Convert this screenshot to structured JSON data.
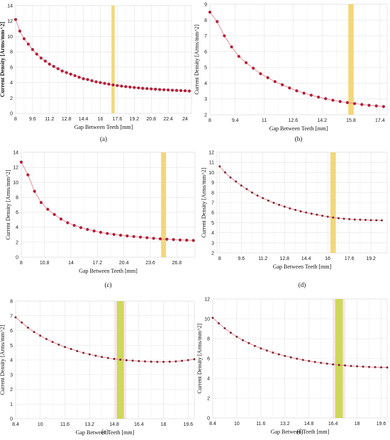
{
  "colors": {
    "line": "#e8868f",
    "marker": "#b0203a",
    "marker_dark": "#7a2a3a",
    "band_gold": "#f2d36b",
    "band_green": "#c9d64a",
    "band_pink": "#f3c6cf",
    "grid": "#e3e3e3"
  },
  "chart_data": [
    {
      "panel": "a",
      "caption": "(a)",
      "type": "line",
      "xlabel": "Gap Between Teeth [mm]",
      "ylabel": "Current Density [Arms/mm^2]",
      "xlim": [
        8,
        24.6
      ],
      "ylim": [
        0,
        14
      ],
      "xticks": [
        "8",
        "9.6",
        "11.2",
        "12.8",
        "14.4",
        "16",
        "17.6",
        "19.2",
        "20.8",
        "22.4",
        "24"
      ],
      "xtick_values": [
        8,
        9.6,
        11.2,
        12.8,
        14.4,
        16,
        17.6,
        19.2,
        20.8,
        22.4,
        24
      ],
      "yticks": [
        "0",
        "2",
        "4",
        "6",
        "8",
        "10",
        "12",
        "14"
      ],
      "ytick_values": [
        0,
        2,
        4,
        6,
        8,
        10,
        12,
        14
      ],
      "highlight": {
        "x": 17.2,
        "width": 0.3,
        "color": "gold"
      },
      "x": [
        8,
        8.4,
        8.8,
        9.2,
        9.6,
        10,
        10.4,
        10.8,
        11.2,
        11.6,
        12,
        12.4,
        12.8,
        13.2,
        13.6,
        14,
        14.4,
        14.8,
        15.2,
        15.6,
        16,
        16.4,
        16.8,
        17.2,
        17.6,
        18,
        18.4,
        18.8,
        19.2,
        19.6,
        20,
        20.4,
        20.8,
        21.2,
        21.6,
        22,
        22.4,
        22.8,
        23.2,
        23.6,
        24,
        24.4
      ],
      "y": [
        12.2,
        10.7,
        9.7,
        9.0,
        8.3,
        7.7,
        7.2,
        6.8,
        6.4,
        6.1,
        5.8,
        5.5,
        5.3,
        5.1,
        4.9,
        4.7,
        4.5,
        4.4,
        4.25,
        4.1,
        4.0,
        3.9,
        3.8,
        3.7,
        3.62,
        3.55,
        3.48,
        3.42,
        3.36,
        3.31,
        3.26,
        3.22,
        3.18,
        3.14,
        3.1,
        3.07,
        3.04,
        3.01,
        2.98,
        2.96,
        2.94,
        2.9
      ],
      "bold_ylabel": true
    },
    {
      "panel": "b",
      "caption": "(b)",
      "type": "line",
      "xlabel": "Gap Between Teeth [mm]",
      "ylabel": "Current Density [Arms/mm^2]",
      "xlim": [
        8,
        17.8
      ],
      "ylim": [
        2,
        9
      ],
      "xticks": [
        "8",
        "9.4",
        "11",
        "12.6",
        "14.2",
        "15.8",
        "17.4"
      ],
      "xtick_values": [
        8,
        9.4,
        11,
        12.6,
        14.2,
        15.8,
        17.4
      ],
      "yticks": [
        "2",
        "3",
        "4",
        "5",
        "6",
        "7",
        "8",
        "9"
      ],
      "ytick_values": [
        2,
        3,
        4,
        5,
        6,
        7,
        8,
        9
      ],
      "highlight": {
        "x": 15.8,
        "width": 0.3,
        "color": "gold"
      },
      "x": [
        8,
        8.4,
        8.8,
        9.2,
        9.6,
        10,
        10.4,
        10.8,
        11.2,
        11.6,
        12,
        12.4,
        12.8,
        13.2,
        13.6,
        14,
        14.4,
        14.8,
        15.2,
        15.6,
        16,
        16.4,
        16.8,
        17.2,
        17.6
      ],
      "y": [
        8.5,
        7.9,
        7.0,
        6.3,
        5.7,
        5.3,
        4.95,
        4.6,
        4.35,
        4.1,
        3.9,
        3.7,
        3.52,
        3.37,
        3.24,
        3.12,
        3.02,
        2.92,
        2.84,
        2.77,
        2.71,
        2.65,
        2.6,
        2.56,
        2.52
      ],
      "bold_ylabel": false
    },
    {
      "panel": "c",
      "caption": "(c)",
      "type": "line",
      "xlabel": "Gap Between Teeth [mm]",
      "ylabel": "Current Density [Arms/mm^2]",
      "xlim": [
        8,
        29
      ],
      "ylim": [
        0,
        14
      ],
      "xticks": [
        "8",
        "10.8",
        "14",
        "17.2",
        "20.4",
        "23.6",
        "26.8"
      ],
      "xtick_values": [
        8,
        10.8,
        14,
        17.2,
        20.4,
        23.6,
        26.8
      ],
      "yticks": [
        "0",
        "2",
        "4",
        "6",
        "8",
        "10",
        "12",
        "14"
      ],
      "ytick_values": [
        0,
        2,
        4,
        6,
        8,
        10,
        12,
        14
      ],
      "highlight": {
        "x": 25.2,
        "width": 0.6,
        "color": "gold"
      },
      "x": [
        8,
        8.8,
        9.6,
        10.4,
        11.2,
        12,
        12.8,
        13.6,
        14.4,
        15.2,
        16,
        16.8,
        17.6,
        18.4,
        19.2,
        20,
        20.8,
        21.6,
        22.4,
        23.2,
        24,
        24.8,
        25.6,
        26.4,
        27.2,
        28,
        28.8
      ],
      "y": [
        12.7,
        11.0,
        8.8,
        7.3,
        6.4,
        5.7,
        5.1,
        4.6,
        4.25,
        3.95,
        3.7,
        3.5,
        3.32,
        3.17,
        3.04,
        2.93,
        2.84,
        2.76,
        2.68,
        2.6,
        2.52,
        2.45,
        2.4,
        2.35,
        2.3,
        2.27,
        2.24
      ],
      "bold_ylabel": false
    },
    {
      "panel": "d",
      "caption": "(d)",
      "type": "line",
      "xlabel": "Gap Between Teeth [mm]",
      "ylabel": "Current Density [Arms/mm^2]",
      "xlim": [
        7.8,
        20.4
      ],
      "ylim": [
        2,
        12
      ],
      "xticks": [
        "8",
        "9.6",
        "11.2",
        "12.8",
        "14.4",
        "16",
        "17.6",
        "19.2"
      ],
      "xtick_values": [
        8,
        9.6,
        11.2,
        12.8,
        14.4,
        16,
        17.6,
        19.2
      ],
      "yticks": [
        "2",
        "3",
        "4",
        "5",
        "6",
        "7",
        "8",
        "9",
        "10",
        "11",
        "12"
      ],
      "ytick_values": [
        2,
        3,
        4,
        5,
        6,
        7,
        8,
        9,
        10,
        11,
        12
      ],
      "highlight": {
        "x": 16.4,
        "width": 0.4,
        "color": "gold"
      },
      "x": [
        8,
        8.4,
        8.8,
        9.2,
        9.6,
        10,
        10.4,
        10.8,
        11.2,
        11.6,
        12,
        12.4,
        12.8,
        13.2,
        13.6,
        14,
        14.4,
        14.8,
        15.2,
        15.6,
        16,
        16.4,
        16.8,
        17.2,
        17.6,
        18,
        18.4,
        18.8,
        19.2,
        19.6,
        20
      ],
      "y": [
        10.6,
        10.0,
        9.5,
        9.1,
        8.7,
        8.35,
        8.0,
        7.7,
        7.45,
        7.2,
        6.98,
        6.78,
        6.6,
        6.43,
        6.28,
        6.14,
        6.02,
        5.9,
        5.8,
        5.7,
        5.6,
        5.52,
        5.45,
        5.4,
        5.36,
        5.32,
        5.3,
        5.28,
        5.26,
        5.25,
        5.24
      ],
      "bold_ylabel": false
    },
    {
      "panel": "e",
      "caption": "(e)",
      "type": "line",
      "xlabel": "Gap Between Teeth [mm]",
      "ylabel": "Current Density [Arms/mm^2]",
      "xlim": [
        8.4,
        20
      ],
      "ylim": [
        0,
        8
      ],
      "xticks": [
        "8.4",
        "10",
        "11.6",
        "13.2",
        "14.8",
        "16.4",
        "18",
        "19.6"
      ],
      "xtick_values": [
        8.4,
        10,
        11.6,
        13.2,
        14.8,
        16.4,
        18,
        19.6
      ],
      "yticks": [
        "0",
        "1",
        "2",
        "3",
        "4",
        "5",
        "6",
        "7",
        "8"
      ],
      "ytick_values": [
        0,
        1,
        2,
        3,
        4,
        5,
        6,
        7,
        8
      ],
      "highlight": {
        "x": 15.2,
        "width": 0.45,
        "color": "green"
      },
      "x": [
        8.4,
        8.8,
        9.2,
        9.6,
        10,
        10.4,
        10.8,
        11.2,
        11.6,
        12,
        12.4,
        12.8,
        13.2,
        13.6,
        14,
        14.4,
        14.8,
        15.2,
        15.6,
        16,
        16.4,
        16.8,
        17.2,
        17.6,
        18,
        18.4,
        18.8,
        19.2,
        19.6,
        20
      ],
      "y": [
        6.9,
        6.55,
        6.2,
        5.9,
        5.65,
        5.42,
        5.22,
        5.04,
        4.88,
        4.74,
        4.6,
        4.48,
        4.38,
        4.29,
        4.2,
        4.13,
        4.07,
        4.02,
        3.98,
        3.95,
        3.92,
        3.9,
        3.88,
        3.87,
        3.87,
        3.88,
        3.9,
        3.94,
        3.99,
        4.05
      ],
      "bold_ylabel": false
    },
    {
      "panel": "f",
      "caption": "(f)",
      "type": "line",
      "xlabel": "Gap Between Teeth [mm]",
      "ylabel": "Current Density [Arms/mm^2]",
      "xlim": [
        8.4,
        20
      ],
      "ylim": [
        0,
        12
      ],
      "xticks": [
        "8.4",
        "10",
        "11.6",
        "13.2",
        "14.8",
        "16.4",
        "18",
        "19.6"
      ],
      "xtick_values": [
        8.4,
        10,
        11.6,
        13.2,
        14.8,
        16.4,
        18,
        19.6
      ],
      "yticks": [
        "0",
        "2",
        "4",
        "6",
        "8",
        "10",
        "12"
      ],
      "ytick_values": [
        0,
        2,
        4,
        6,
        8,
        10,
        12
      ],
      "highlight": {
        "x": 16.8,
        "width": 0.5,
        "color": "green"
      },
      "x": [
        8.4,
        8.8,
        9.2,
        9.6,
        10,
        10.4,
        10.8,
        11.2,
        11.6,
        12,
        12.4,
        12.8,
        13.2,
        13.6,
        14,
        14.4,
        14.8,
        15.2,
        15.6,
        16,
        16.4,
        16.8,
        17.2,
        17.6,
        18,
        18.4,
        18.8,
        19.2,
        19.6,
        20
      ],
      "y": [
        10.1,
        9.55,
        9.05,
        8.6,
        8.2,
        7.85,
        7.55,
        7.27,
        7.02,
        6.8,
        6.6,
        6.42,
        6.26,
        6.12,
        5.98,
        5.86,
        5.75,
        5.65,
        5.56,
        5.48,
        5.41,
        5.35,
        5.3,
        5.25,
        5.21,
        5.18,
        5.15,
        5.13,
        5.11,
        5.1
      ],
      "bold_ylabel": false
    }
  ]
}
